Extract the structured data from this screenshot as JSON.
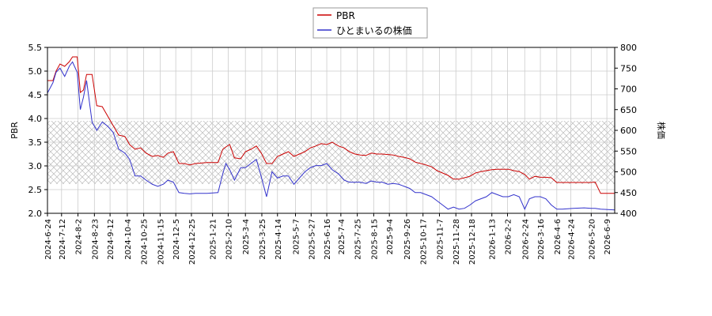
{
  "chart_data": {
    "type": "line",
    "x": [
      "2024-6-24",
      "2024-7-1",
      "2024-7-5",
      "2024-7-10",
      "2024-7-16",
      "2024-7-22",
      "2024-7-26",
      "2024-8-1",
      "2024-8-5",
      "2024-8-9",
      "2024-8-13",
      "2024-8-20",
      "2024-8-26",
      "2024-9-2",
      "2024-9-9",
      "2024-9-16",
      "2024-9-23",
      "2024-10-1",
      "2024-10-7",
      "2024-10-14",
      "2024-10-21",
      "2024-10-28",
      "2024-11-5",
      "2024-11-12",
      "2024-11-19",
      "2024-11-25",
      "2024-12-2",
      "2024-12-9",
      "2024-12-16",
      "2024-12-23",
      "2024-12-30",
      "2025-1-14",
      "2025-1-28",
      "2025-2-3",
      "2025-2-7",
      "2025-2-12",
      "2025-2-18",
      "2025-2-26",
      "2025-3-4",
      "2025-3-11",
      "2025-3-18",
      "2025-3-24",
      "2025-3-31",
      "2025-4-7",
      "2025-4-14",
      "2025-4-21",
      "2025-4-28",
      "2025-5-5",
      "2025-5-12",
      "2025-5-19",
      "2025-5-26",
      "2025-6-2",
      "2025-6-9",
      "2025-6-16",
      "2025-6-23",
      "2025-7-1",
      "2025-7-8",
      "2025-7-15",
      "2025-7-22",
      "2025-7-29",
      "2025-8-5",
      "2025-8-12",
      "2025-8-19",
      "2025-8-26",
      "2025-9-2",
      "2025-9-9",
      "2025-9-16",
      "2025-9-23",
      "2025-9-30",
      "2025-10-7",
      "2025-10-14",
      "2025-10-21",
      "2025-10-28",
      "2025-11-4",
      "2025-11-11",
      "2025-11-18",
      "2025-11-25",
      "2025-12-2",
      "2025-12-9",
      "2025-12-16",
      "2025-12-23",
      "2025-12-30",
      "2026-1-6",
      "2026-1-13",
      "2026-1-20",
      "2026-1-27",
      "2026-2-3",
      "2026-2-10",
      "2026-2-17",
      "2026-2-24",
      "2026-3-2",
      "2026-3-9",
      "2026-3-16",
      "2026-3-23",
      "2026-3-30",
      "2026-4-6",
      "2026-4-13",
      "2026-4-27",
      "2026-5-11",
      "2026-5-20",
      "2026-5-25",
      "2026-6-1",
      "2026-6-19"
    ],
    "series": [
      {
        "name": "PBR",
        "color": "#cc0000",
        "axis": "y",
        "values": [
          4.8,
          4.8,
          5.0,
          5.15,
          5.1,
          5.2,
          5.3,
          5.3,
          4.55,
          4.6,
          4.93,
          4.93,
          4.27,
          4.25,
          4.05,
          3.85,
          3.65,
          3.62,
          3.45,
          3.35,
          3.38,
          3.27,
          3.2,
          3.22,
          3.18,
          3.27,
          3.3,
          3.05,
          3.05,
          3.02,
          3.05,
          3.07,
          3.07,
          3.35,
          3.4,
          3.45,
          3.17,
          3.15,
          3.3,
          3.35,
          3.42,
          3.28,
          3.05,
          3.05,
          3.2,
          3.25,
          3.3,
          3.2,
          3.25,
          3.3,
          3.38,
          3.42,
          3.47,
          3.45,
          3.5,
          3.42,
          3.38,
          3.3,
          3.25,
          3.23,
          3.22,
          3.27,
          3.25,
          3.25,
          3.24,
          3.23,
          3.2,
          3.18,
          3.15,
          3.08,
          3.05,
          3.02,
          2.98,
          2.9,
          2.85,
          2.8,
          2.72,
          2.72,
          2.75,
          2.78,
          2.85,
          2.88,
          2.9,
          2.92,
          2.93,
          2.93,
          2.93,
          2.9,
          2.88,
          2.82,
          2.72,
          2.78,
          2.76,
          2.76,
          2.75,
          2.65,
          2.65,
          2.65,
          2.65,
          2.65,
          2.66,
          2.42,
          2.42
        ]
      },
      {
        "name": "ひとまいるの株価",
        "color": "#3333cc",
        "axis": "y2",
        "values": [
          690,
          715,
          740,
          750,
          730,
          755,
          765,
          740,
          650,
          680,
          720,
          620,
          600,
          620,
          610,
          595,
          555,
          545,
          530,
          490,
          490,
          480,
          470,
          465,
          470,
          480,
          475,
          450,
          448,
          447,
          448,
          448,
          450,
          495,
          520,
          505,
          480,
          510,
          510,
          520,
          530,
          490,
          440,
          500,
          485,
          490,
          490,
          470,
          485,
          500,
          510,
          515,
          515,
          520,
          505,
          495,
          480,
          475,
          475,
          475,
          472,
          478,
          475,
          475,
          470,
          472,
          470,
          465,
          460,
          450,
          450,
          445,
          440,
          430,
          420,
          410,
          415,
          410,
          412,
          420,
          430,
          435,
          440,
          450,
          445,
          440,
          440,
          445,
          440,
          410,
          435,
          440,
          440,
          435,
          420,
          410,
          410,
          412,
          413,
          412,
          412,
          410,
          408
        ]
      }
    ],
    "xlim": [
      "2024-6-24",
      "2026-6-19"
    ],
    "xticks": [
      "2024-6-24",
      "2024-7-12",
      "2024-8-2",
      "2024-8-23",
      "2024-9-12",
      "2024-10-4",
      "2024-10-25",
      "2024-11-15",
      "2024-12-5",
      "2024-12-25",
      "2025-1-21",
      "2025-2-10",
      "2025-3-4",
      "2025-3-25",
      "2025-4-14",
      "2025-5-7",
      "2025-5-27",
      "2025-6-16",
      "2025-7-4",
      "2025-7-25",
      "2025-8-15",
      "2025-9-4",
      "2025-9-26",
      "2025-10-17",
      "2025-11-7",
      "2025-11-28",
      "2025-12-18",
      "2026-1-13",
      "2026-2-2",
      "2026-2-24",
      "2026-3-16",
      "2026-4-6",
      "2026-4-24",
      "2026-5-20",
      "2026-6-9"
    ],
    "ylabel": "PBR",
    "ylim": [
      2.0,
      5.5
    ],
    "yticks": [
      {
        "value": 2.0,
        "label": "2.0"
      },
      {
        "value": 2.5,
        "label": "2.5"
      },
      {
        "value": 3.0,
        "label": "3.0"
      },
      {
        "value": 3.5,
        "label": "3.5"
      },
      {
        "value": 4.0,
        "label": "4.0"
      },
      {
        "value": 4.5,
        "label": "4.5"
      },
      {
        "value": 5.0,
        "label": "5.0"
      },
      {
        "value": 5.5,
        "label": "5.5"
      }
    ],
    "y2label": "株価",
    "y2lim": [
      400,
      800
    ],
    "y2ticks": [
      400,
      450,
      500,
      550,
      600,
      650,
      700,
      750,
      800
    ],
    "band": [
      2.62,
      3.95
    ],
    "grid": true,
    "legend": "top"
  }
}
